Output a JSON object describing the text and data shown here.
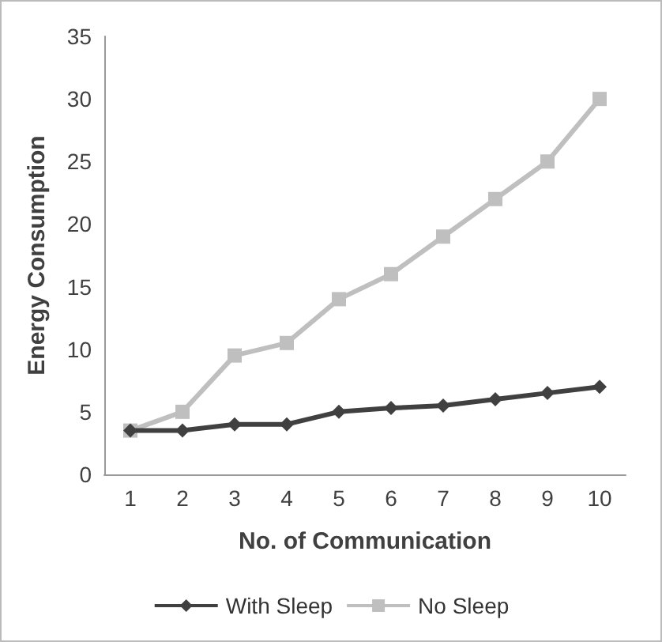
{
  "chart_data": {
    "type": "line",
    "xlabel": "No. of Communication",
    "ylabel": "Energy Consumption",
    "categories": [
      "1",
      "2",
      "3",
      "4",
      "5",
      "6",
      "7",
      "8",
      "9",
      "10"
    ],
    "series": [
      {
        "name": "With Sleep",
        "color": "#404040",
        "marker": "diamond",
        "values": [
          3.5,
          3.5,
          4,
          4,
          5,
          5.3,
          5.5,
          6,
          6.5,
          7
        ]
      },
      {
        "name": "No Sleep",
        "color": "#bfbfbf",
        "marker": "square",
        "values": [
          3.5,
          5,
          9.5,
          10.5,
          14,
          16,
          19,
          22,
          25,
          30
        ]
      }
    ],
    "ylim": [
      0,
      35
    ],
    "yticks": [
      0,
      5,
      10,
      15,
      20,
      25,
      30,
      35
    ],
    "grid": false,
    "legend": "bottom",
    "line_style": "solid"
  }
}
